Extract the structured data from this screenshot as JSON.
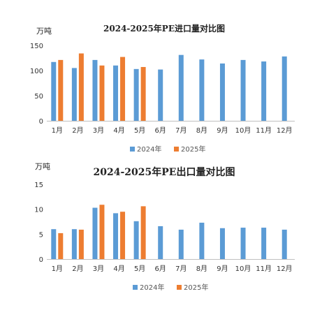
{
  "colors": {
    "series2024": "#5b9bd5",
    "series2025": "#ed7d31",
    "axis": "#bfbfbf"
  },
  "chart_data": [
    {
      "type": "bar",
      "title": "2024-2025年PE进口量对比图",
      "unit": "万吨",
      "categories": [
        "1月",
        "2月",
        "3月",
        "4月",
        "5月",
        "6月",
        "7月",
        "8月",
        "9月",
        "10月",
        "11月",
        "12月"
      ],
      "ylim": [
        0,
        150
      ],
      "yticks": [
        0,
        50,
        100,
        150
      ],
      "grid": false,
      "legend": "bottom",
      "series": [
        {
          "name": "2024年",
          "values": [
            117,
            105,
            121,
            110,
            103,
            102,
            131,
            122,
            114,
            121,
            118,
            128
          ]
        },
        {
          "name": "2025年",
          "values": [
            121,
            134,
            110,
            127,
            107,
            null,
            null,
            null,
            null,
            null,
            null,
            null
          ]
        }
      ]
    },
    {
      "type": "bar",
      "title": "2024-2025年PE出口量对比图",
      "unit": "万吨",
      "categories": [
        "1月",
        "2月",
        "3月",
        "4月",
        "5月",
        "6月",
        "7月",
        "8月",
        "9月",
        "10月",
        "11月",
        "12月"
      ],
      "ylim": [
        0,
        15
      ],
      "yticks": [
        0,
        5,
        10,
        15
      ],
      "grid": false,
      "legend": "bottom",
      "series": [
        {
          "name": "2024年",
          "values": [
            6.0,
            6.0,
            10.3,
            9.2,
            7.6,
            6.6,
            5.9,
            7.3,
            6.2,
            6.3,
            6.3,
            5.9
          ]
        },
        {
          "name": "2025年",
          "values": [
            5.2,
            5.9,
            10.9,
            9.5,
            10.6,
            null,
            null,
            null,
            null,
            null,
            null,
            null
          ]
        }
      ]
    }
  ]
}
